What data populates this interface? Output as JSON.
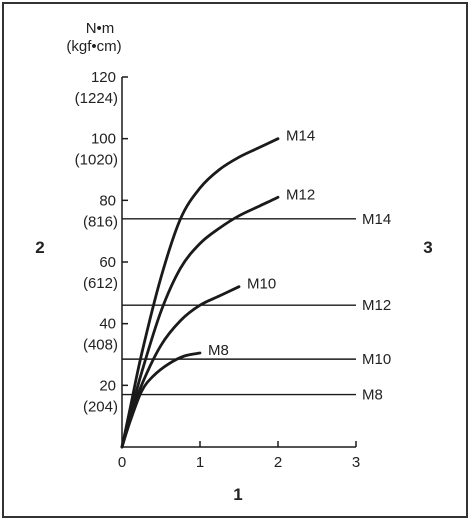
{
  "chart_data": {
    "type": "line",
    "y_unit": "N•m",
    "y_unit_secondary": "(kgf•cm)",
    "x_ticks": [
      "0",
      "1",
      "2",
      "3"
    ],
    "y_ticks": [
      {
        "value": 20,
        "label": "20",
        "label2": "(204)"
      },
      {
        "value": 40,
        "label": "40",
        "label2": "(408)"
      },
      {
        "value": 60,
        "label": "60",
        "label2": "(612)"
      },
      {
        "value": 80,
        "label": "80",
        "label2": "(816)"
      },
      {
        "value": 100,
        "label": "100",
        "label2": "(1020)"
      },
      {
        "value": 120,
        "label": "120",
        "label2": "(1224)"
      }
    ],
    "xlim": [
      0,
      3
    ],
    "ylim": [
      0,
      120
    ],
    "curves": [
      {
        "name": "M14",
        "points": [
          [
            0,
            0
          ],
          [
            0.1,
            12
          ],
          [
            0.25,
            30
          ],
          [
            0.5,
            55
          ],
          [
            0.75,
            74
          ],
          [
            1.0,
            84
          ],
          [
            1.25,
            90
          ],
          [
            1.5,
            94
          ],
          [
            1.75,
            97
          ],
          [
            2.0,
            100
          ]
        ]
      },
      {
        "name": "M12",
        "points": [
          [
            0,
            0
          ],
          [
            0.1,
            10
          ],
          [
            0.25,
            24
          ],
          [
            0.5,
            44
          ],
          [
            0.75,
            58
          ],
          [
            1.0,
            66
          ],
          [
            1.25,
            71
          ],
          [
            1.5,
            75
          ],
          [
            1.75,
            78
          ],
          [
            2.0,
            81
          ]
        ]
      },
      {
        "name": "M10",
        "points": [
          [
            0,
            0
          ],
          [
            0.1,
            9
          ],
          [
            0.25,
            20
          ],
          [
            0.5,
            33
          ],
          [
            0.75,
            41
          ],
          [
            1.0,
            46
          ],
          [
            1.25,
            49
          ],
          [
            1.5,
            52
          ]
        ]
      },
      {
        "name": "M8",
        "points": [
          [
            0,
            0
          ],
          [
            0.1,
            8
          ],
          [
            0.25,
            18
          ],
          [
            0.4,
            23
          ],
          [
            0.6,
            27
          ],
          [
            0.8,
            29.5
          ],
          [
            1.0,
            30.5
          ]
        ]
      }
    ],
    "reference_lines": [
      {
        "name": "M14",
        "value": 74
      },
      {
        "name": "M12",
        "value": 46
      },
      {
        "name": "M10",
        "value": 28.5
      },
      {
        "name": "M8",
        "value": 17
      }
    ],
    "callouts": {
      "x_axis": "1",
      "y_axis": "2",
      "right": "3"
    },
    "colors": {
      "line": "#1a1a1a",
      "frame": "#333333",
      "text": "#222222"
    }
  }
}
